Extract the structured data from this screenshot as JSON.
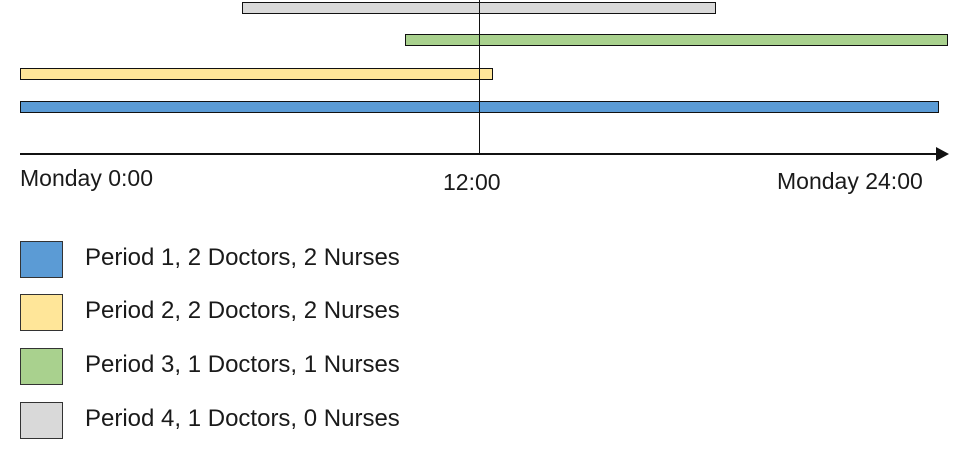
{
  "colors": {
    "period1": "#5b9bd5",
    "period2": "#ffe699",
    "period3": "#a9d18e",
    "period4": "#d9d9d9",
    "line": "#111111"
  },
  "axis": {
    "start_label": "Monday 0:00",
    "mid_label": "12:00",
    "end_label": "Monday 24:00"
  },
  "periods": [
    {
      "label": "Period 1, 2 Doctors, 2 Nurses",
      "start_hour": 0,
      "end_hour": 24
    },
    {
      "label": "Period 2, 2 Doctors, 2 Nurses",
      "start_hour": 0,
      "end_hour": 12.3
    },
    {
      "label": "Period 3, 1 Doctors, 1 Nurses",
      "start_hour": 10,
      "end_hour": 24
    },
    {
      "label": "Period 4, 1 Doctors, 0 Nurses",
      "start_hour": 5.8,
      "end_hour": 18.2
    }
  ]
}
